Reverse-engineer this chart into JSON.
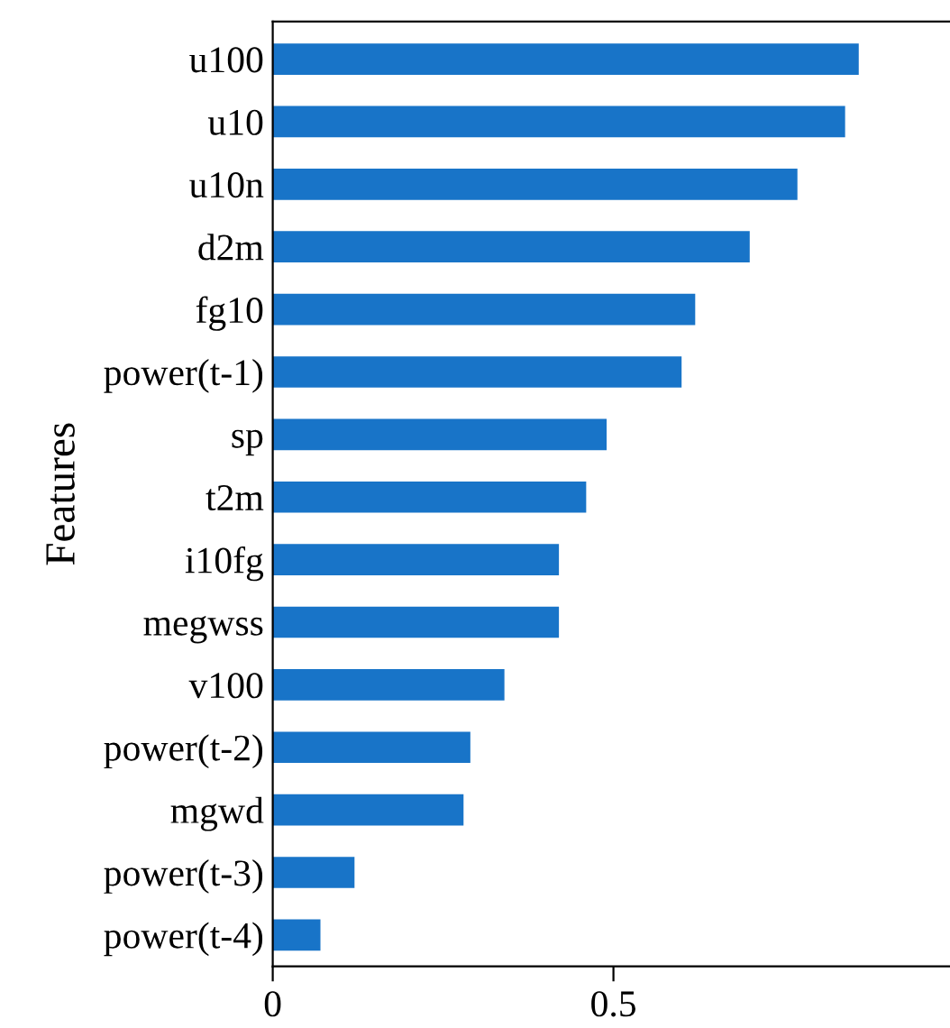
{
  "chart_data": {
    "type": "bar",
    "orientation": "horizontal",
    "ylabel": "Features",
    "categories": [
      "u100",
      "u10",
      "u10n",
      "d2m",
      "fg10",
      "power(t-1)",
      "sp",
      "t2m",
      "i10fg",
      "megwss",
      "v100",
      "power(t-2)",
      "mgwd",
      "power(t-3)",
      "power(t-4)"
    ],
    "values": [
      0.86,
      0.84,
      0.77,
      0.7,
      0.62,
      0.6,
      0.49,
      0.46,
      0.42,
      0.42,
      0.34,
      0.29,
      0.28,
      0.12,
      0.07
    ],
    "color": "#1874c8",
    "xlim": [
      0,
      1
    ],
    "xticks": [
      0,
      0.5
    ],
    "grid": false,
    "legend": false
  }
}
